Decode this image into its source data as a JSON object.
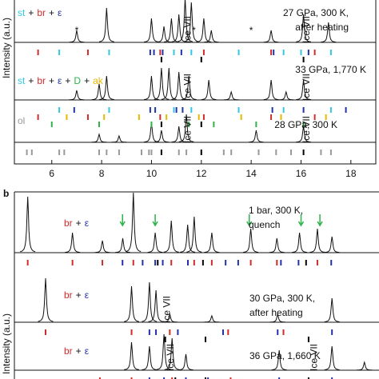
{
  "chart_data": [
    {
      "type": "xrd",
      "y_label": "Intensity (a.u.)",
      "xlim": [
        4.5,
        19
      ],
      "xticks": [
        6,
        8,
        10,
        12,
        14,
        16,
        18
      ],
      "traces": [
        {
          "phases": [
            {
              "name": "st",
              "color": "#33c7e0"
            },
            {
              "name": "br",
              "color": "#d32a2a"
            },
            {
              "name": "ε",
              "color": "#2233aa"
            }
          ],
          "separator": "+",
          "annotation": [
            "27 GPa, 300 K,",
            "after heating"
          ],
          "peaks": {
            "x": [
              7.0,
              8.2,
              10.0,
              10.5,
              10.8,
              11.1,
              11.35,
              11.6,
              12.1,
              12.4,
              14.8,
              16.1,
              17.1
            ],
            "values": [
              15,
              43,
              30,
              20,
              30,
              35,
              55,
              50,
              30,
              15,
              15,
              35,
              25
            ]
          },
          "stars": [
            {
              "x": 7.0,
              "text": "*"
            },
            {
              "x": 11.7,
              "text": "*"
            },
            {
              "x": 14.0,
              "text": "*"
            }
          ],
          "ice": [
            {
              "x": 11.35,
              "text": "Ice VII"
            },
            {
              "x": 16.1,
              "text": "Ice VII"
            }
          ],
          "reflections": [
            [
              {
                "color": "#d32a2a",
                "x": [
                  5.45,
                  7.45,
                  10.35,
                  12.1,
                  14.8,
                  16.55
                ]
              },
              {
                "color": "#33c7e0",
                "x": [
                  6.3,
                  8.3,
                  10.9,
                  11.6,
                  13.5,
                  15.3,
                  16.0,
                  17.2
                ]
              },
              {
                "color": "#2233aa",
                "x": [
                  9.95,
                  10.1,
                  10.45,
                  11.2,
                  14.9,
                  16.3
                ]
              }
            ],
            [
              {
                "color": "#000000",
                "x": [
                  10.4,
                  12.0,
                  16.1
                ]
              }
            ]
          ]
        },
        {
          "phases": [
            {
              "name": "st",
              "color": "#33c7e0"
            },
            {
              "name": "br",
              "color": "#d32a2a"
            },
            {
              "name": "ε",
              "color": "#2233aa"
            },
            {
              "name": "D",
              "color": "#2db34a"
            },
            {
              "name": "ak",
              "color": "#e6b800"
            }
          ],
          "separator": "+",
          "annotation": [
            "33 GPa, 1,770 K"
          ],
          "peaks": {
            "x": [
              7.0,
              7.9,
              8.2,
              10.0,
              10.4,
              10.7,
              11.1,
              11.5,
              12.3,
              13.2,
              14.8,
              15.4,
              16.1
            ],
            "values": [
              12,
              20,
              30,
              30,
              40,
              40,
              35,
              30,
              25,
              10,
              25,
              10,
              25
            ]
          },
          "stars": [],
          "ice": [
            {
              "x": 11.35,
              "text": "Ice VII"
            },
            {
              "x": 16.1,
              "text": "Ice VII"
            }
          ],
          "reflections": [
            [
              {
                "color": "#2233aa",
                "x": [
                  6.9,
                  9.95,
                  10.15,
                  11.0,
                  11.25,
                  14.85,
                  16.1,
                  17.8
                ]
              },
              {
                "color": "#33c7e0",
                "x": [
                  6.3,
                  8.3,
                  10.9,
                  11.6,
                  13.5,
                  15.3,
                  17.2
                ]
              }
            ],
            [
              {
                "color": "#d32a2a",
                "x": [
                  5.45,
                  7.45,
                  10.35,
                  12.1,
                  14.8,
                  16.55
                ]
              },
              {
                "color": "#e6b800",
                "x": [
                  6.6,
                  8.1,
                  9.5,
                  10.6,
                  11.9,
                  13.6,
                  15.2,
                  17.0
                ]
              }
            ],
            [
              {
                "color": "#2db34a",
                "x": [
                  6.0,
                  7.9,
                  10.0,
                  11.5,
                  12.5,
                  14.2,
                  16.1
                ]
              },
              {
                "color": "#000000",
                "x": [
                  10.4,
                  12.0
                ]
              }
            ]
          ]
        },
        {
          "phases": [
            {
              "name": "ol",
              "color": "#999999"
            }
          ],
          "separator": "+",
          "annotation": [
            "28 GPa, 300 K"
          ],
          "peaks": {
            "x": [
              7.9,
              8.7,
              10.0,
              10.4,
              11.1,
              11.4,
              14.2,
              16.1
            ],
            "values": [
              10,
              8,
              25,
              15,
              20,
              35,
              15,
              20
            ]
          },
          "stars": [],
          "ice": [
            {
              "x": 11.35,
              "text": "Ice VII"
            },
            {
              "x": 16.1,
              "text": "Ice VII"
            }
          ],
          "reflections": [
            [
              {
                "color": "#999999",
                "x": [
                  5.0,
                  5.2,
                  6.3,
                  6.5,
                  7.9,
                  8.2,
                  8.7,
                  9.6,
                  9.9,
                  10.0,
                  11.1,
                  11.4,
                  12.9,
                  13.2,
                  14.3,
                  15.0,
                  15.6,
                  16.8,
                  17.2
                ]
              },
              {
                "color": "#000000",
                "x": [
                  10.4,
                  12.0,
                  16.1
                ]
              }
            ]
          ]
        }
      ]
    },
    {
      "type": "xrd",
      "panel_label": "b",
      "y_label": "Intensity (a.u.)",
      "xlim": [
        4.5,
        19
      ],
      "traces": [
        {
          "phases": [
            {
              "name": "br",
              "color": "#d32a2a"
            },
            {
              "name": "ε",
              "color": "#2233aa"
            }
          ],
          "separator": "+",
          "annotation": [
            "1 bar, 300 K,",
            "quench"
          ],
          "peaks": {
            "x": [
              5.03,
              6.81,
              8.0,
              8.81,
              9.23,
              10.1,
              10.74,
              11.39,
              11.65,
              12.35,
              13.9,
              14.94,
              15.84,
              16.55,
              17.13
            ],
            "values": [
              70,
              25,
              15,
              18,
              75,
              25,
              40,
              35,
              45,
              25,
              30,
              18,
              25,
              30,
              20
            ]
          },
          "arrows": [
            8.8,
            10.1,
            13.84,
            15.9,
            16.65
          ],
          "stars": [],
          "ice": [],
          "reflections": [
            [
              {
                "color": "#d32a2a",
                "x": [
                  5.03,
                  6.81,
                  8.0,
                  9.23,
                  10.74,
                  11.65,
                  12.35,
                  13.9,
                  14.94,
                  16.55
                ]
              },
              {
                "color": "#2233aa",
                "x": [
                  8.8,
                  9.6,
                  10.1,
                  10.4,
                  11.4,
                  12.9,
                  13.4,
                  15.1,
                  15.8,
                  17.1
                ]
              },
              {
                "color": "#000000",
                "x": [
                  10.2,
                  12.0,
                  16.1
                ]
              }
            ]
          ]
        },
        {
          "phases": [
            {
              "name": "br",
              "color": "#d32a2a"
            },
            {
              "name": "ε",
              "color": "#2233aa"
            }
          ],
          "separator": "+",
          "annotation": [
            "30 GPa, 300 K,",
            "after heating"
          ],
          "peaks": {
            "x": [
              5.74,
              9.16,
              9.87,
              10.13,
              10.68,
              12.35,
              14.97,
              17.13
            ],
            "values": [
              55,
              45,
              50,
              40,
              10,
              8,
              10,
              30
            ]
          },
          "stars": [],
          "ice": [
            {
              "x": 10.45,
              "text": "Ice VII"
            }
          ],
          "reflections": [
            [
              {
                "color": "#d32a2a",
                "x": [
                  5.74,
                  9.16,
                  10.68,
                  13.0,
                  15.2
                ]
              },
              {
                "color": "#2233aa",
                "x": [
                  9.87,
                  10.13,
                  11.0,
                  12.8,
                  14.97,
                  17.13
                ]
              }
            ],
            [
              {
                "color": "#000000",
                "x": [
                  10.5,
                  12.1,
                  16.2
                ]
              }
            ]
          ]
        },
        {
          "phases": [
            {
              "name": "br",
              "color": "#d32a2a"
            },
            {
              "name": "ε",
              "color": "#2233aa"
            }
          ],
          "separator": "+",
          "annotation": [
            "36 GPa, 1,660 K"
          ],
          "peaks": {
            "x": [
              9.16,
              9.87,
              10.45,
              10.77,
              11.32,
              15.03,
              17.13,
              18.42
            ],
            "values": [
              35,
              30,
              45,
              40,
              20,
              25,
              30,
              10
            ]
          },
          "stars": [],
          "ice": [
            {
              "x": 10.6,
              "text": "Ice VII"
            },
            {
              "x": 16.3,
              "text": "Ice VII"
            }
          ],
          "reflections": [
            [
              {
                "color": "#d32a2a",
                "x": [
                  7.9,
                  9.16,
                  10.77,
                  13.1
                ]
              },
              {
                "color": "#2233aa",
                "x": [
                  9.87,
                  10.45,
                  11.32,
                  12.2,
                  15.03,
                  17.13
                ]
              },
              {
                "color": "#000000",
                "x": [
                  10.9,
                  12.1,
                  16.2
                ]
              }
            ]
          ]
        }
      ]
    }
  ]
}
